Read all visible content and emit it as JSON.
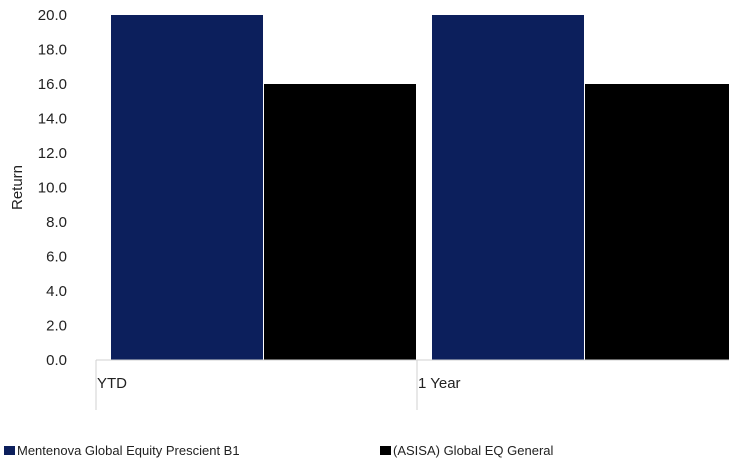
{
  "chart_data": {
    "type": "bar",
    "title": "",
    "xlabel": "",
    "ylabel": "Return",
    "categories": [
      "YTD",
      "1 Year"
    ],
    "ylim": [
      0,
      20
    ],
    "yticks": [
      "0.0",
      "2.0",
      "4.0",
      "6.0",
      "8.0",
      "10.0",
      "12.0",
      "14.0",
      "16.0",
      "18.0",
      "20.0"
    ],
    "grid": false,
    "legend_position": "bottom",
    "series": [
      {
        "name": "Mentenova Global Equity Prescient B1",
        "color": "#0c1f5c",
        "values": [
          20.0,
          20.0
        ]
      },
      {
        "name": "(ASISA) Global EQ General",
        "color": "#000000",
        "values": [
          16.0,
          16.0
        ]
      }
    ]
  }
}
